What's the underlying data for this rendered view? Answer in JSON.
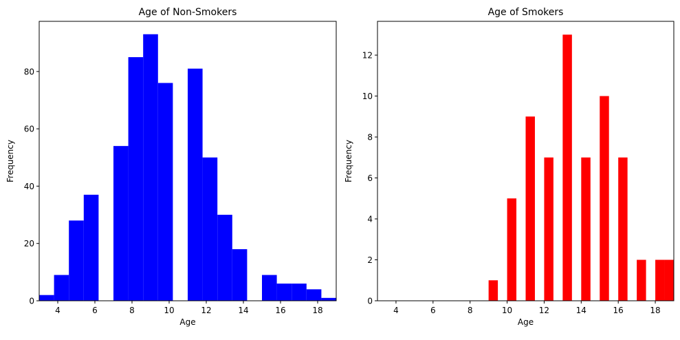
{
  "chart_data": [
    {
      "type": "bar",
      "title": "Age of Non-Smokers",
      "xlabel": "Age",
      "ylabel": "Frequency",
      "xlim": [
        3,
        19
      ],
      "ylim": [
        0,
        97.5
      ],
      "xticks": [
        4,
        6,
        8,
        10,
        12,
        14,
        16,
        18
      ],
      "yticks": [
        0,
        20,
        40,
        60,
        80
      ],
      "color": "#0000ff",
      "bars": [
        {
          "x0": 3.0,
          "x1": 3.8,
          "value": 2
        },
        {
          "x0": 3.8,
          "x1": 4.6,
          "value": 9
        },
        {
          "x0": 4.6,
          "x1": 5.4,
          "value": 28
        },
        {
          "x0": 5.4,
          "x1": 6.2,
          "value": 37
        },
        {
          "x0": 7.0,
          "x1": 7.8,
          "value": 54
        },
        {
          "x0": 7.8,
          "x1": 8.6,
          "value": 85
        },
        {
          "x0": 8.6,
          "x1": 9.4,
          "value": 93
        },
        {
          "x0": 9.4,
          "x1": 10.2,
          "value": 76
        },
        {
          "x0": 11.0,
          "x1": 11.8,
          "value": 81
        },
        {
          "x0": 11.8,
          "x1": 12.6,
          "value": 50
        },
        {
          "x0": 12.6,
          "x1": 13.4,
          "value": 30
        },
        {
          "x0": 13.4,
          "x1": 14.2,
          "value": 18
        },
        {
          "x0": 15.0,
          "x1": 15.8,
          "value": 9
        },
        {
          "x0": 15.8,
          "x1": 16.6,
          "value": 6
        },
        {
          "x0": 16.6,
          "x1": 17.4,
          "value": 6
        },
        {
          "x0": 17.4,
          "x1": 18.2,
          "value": 4
        },
        {
          "x0": 18.2,
          "x1": 19.0,
          "value": 1
        }
      ]
    },
    {
      "type": "bar",
      "title": "Age of Smokers",
      "xlabel": "Age",
      "ylabel": "Frequency",
      "xlim": [
        3,
        19
      ],
      "ylim": [
        0,
        13.65
      ],
      "xticks": [
        4,
        6,
        8,
        10,
        12,
        14,
        16,
        18
      ],
      "yticks": [
        0,
        2,
        4,
        6,
        8,
        10,
        12
      ],
      "color": "#ff0000",
      "bars": [
        {
          "x0": 9.0,
          "x1": 9.5,
          "value": 1
        },
        {
          "x0": 10.0,
          "x1": 10.5,
          "value": 5
        },
        {
          "x0": 11.0,
          "x1": 11.5,
          "value": 9
        },
        {
          "x0": 12.0,
          "x1": 12.5,
          "value": 7
        },
        {
          "x0": 13.0,
          "x1": 13.5,
          "value": 13
        },
        {
          "x0": 14.0,
          "x1": 14.5,
          "value": 7
        },
        {
          "x0": 15.0,
          "x1": 15.5,
          "value": 10
        },
        {
          "x0": 16.0,
          "x1": 16.5,
          "value": 7
        },
        {
          "x0": 17.0,
          "x1": 17.5,
          "value": 2
        },
        {
          "x0": 18.0,
          "x1": 18.5,
          "value": 2
        },
        {
          "x0": 18.5,
          "x1": 19.0,
          "value": 2
        }
      ]
    }
  ]
}
